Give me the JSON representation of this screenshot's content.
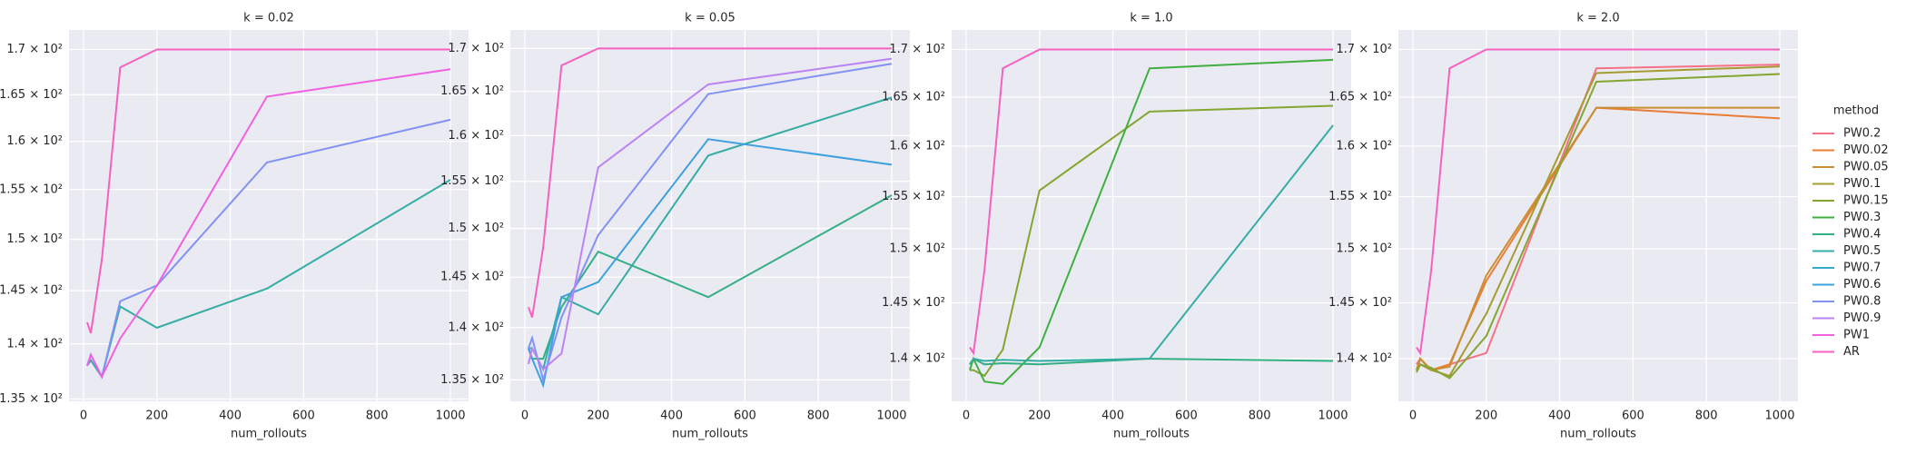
{
  "legend": {
    "title": "method",
    "entries": [
      {
        "name": "PW0.2",
        "color": "#f77189"
      },
      {
        "name": "PW0.02",
        "color": "#ea7d35"
      },
      {
        "name": "PW0.05",
        "color": "#c88e31"
      },
      {
        "name": "PW0.1",
        "color": "#a59c31"
      },
      {
        "name": "PW0.15",
        "color": "#84a631"
      },
      {
        "name": "PW0.3",
        "color": "#3fb03f"
      },
      {
        "name": "PW0.4",
        "color": "#34af84"
      },
      {
        "name": "PW0.5",
        "color": "#36ada4"
      },
      {
        "name": "PW0.7",
        "color": "#38a9c5"
      },
      {
        "name": "PW0.6",
        "color": "#3ca1e0"
      },
      {
        "name": "PW0.8",
        "color": "#8192f4"
      },
      {
        "name": "PW0.9",
        "color": "#bb83f4"
      },
      {
        "name": "PW1",
        "color": "#f160e3"
      },
      {
        "name": "AR",
        "color": "#f561c0"
      }
    ]
  },
  "chart_data": [
    {
      "type": "line",
      "title": "k = 0.02",
      "xlabel": "num_rollouts",
      "log_y": true,
      "grid": true,
      "x": [
        10,
        20,
        50,
        100,
        200,
        500,
        1000
      ],
      "xlim": [
        -39.5,
        1049.5
      ],
      "xticks": [
        0,
        200,
        400,
        600,
        800,
        1000
      ],
      "ylim": [
        134.8,
        172.2
      ],
      "yticks": [
        {
          "value": 135,
          "label": "1.35 × 10²"
        },
        {
          "value": 140,
          "label": "1.4 × 10²"
        },
        {
          "value": 145,
          "label": "1.45 × 10²"
        },
        {
          "value": 150,
          "label": "1.5 × 10²"
        },
        {
          "value": 155,
          "label": "1.55 × 10²"
        },
        {
          "value": 160,
          "label": "1.6 × 10²"
        },
        {
          "value": 165,
          "label": "1.65 × 10²"
        },
        {
          "value": 170,
          "label": "1.7 × 10²"
        }
      ],
      "series": [
        {
          "name": "PW0.5",
          "color": "#36ada4",
          "values": [
            138,
            138.5,
            137,
            143.5,
            141.5,
            145.2,
            156
          ]
        },
        {
          "name": "PW0.8",
          "color": "#8192f4",
          "values": [
            138,
            139,
            137,
            144,
            145.5,
            157.8,
            162.3
          ]
        },
        {
          "name": "PW1",
          "color": "#f160e3",
          "values": [
            138,
            139,
            137,
            140.5,
            145.5,
            164.8,
            167.8
          ]
        },
        {
          "name": "AR",
          "color": "#f561c0",
          "values": [
            142,
            141,
            148,
            168,
            170,
            170,
            170
          ]
        }
      ]
    },
    {
      "type": "line",
      "title": "k = 0.05",
      "xlabel": "num_rollouts",
      "log_y": true,
      "grid": true,
      "x": [
        10,
        20,
        50,
        100,
        200,
        500,
        1000
      ],
      "xlim": [
        -39.5,
        1049.5
      ],
      "xticks": [
        0,
        200,
        400,
        600,
        800,
        1000
      ],
      "ylim": [
        133,
        172.2
      ],
      "yticks": [
        {
          "value": 135,
          "label": "1.35 × 10²"
        },
        {
          "value": 140,
          "label": "1.4 × 10²"
        },
        {
          "value": 145,
          "label": "1.45 × 10²"
        },
        {
          "value": 150,
          "label": "1.5 × 10²"
        },
        {
          "value": 155,
          "label": "1.55 × 10²"
        },
        {
          "value": 160,
          "label": "1.6 × 10²"
        },
        {
          "value": 165,
          "label": "1.65 × 10²"
        },
        {
          "value": 170,
          "label": "1.7 × 10²"
        }
      ],
      "series": [
        {
          "name": "PW0.4",
          "color": "#34af84",
          "values": [
            138,
            137,
            137,
            142,
            147.6,
            143,
            153.5
          ]
        },
        {
          "name": "PW0.5",
          "color": "#36ada4",
          "values": [
            138,
            138,
            136,
            143,
            141.3,
            157.8,
            164.3
          ]
        },
        {
          "name": "PW0.6",
          "color": "#3ca1e0",
          "values": [
            138,
            137,
            134.5,
            143,
            144.5,
            159.6,
            156.8
          ]
        },
        {
          "name": "PW0.8",
          "color": "#8192f4",
          "values": [
            138,
            139,
            135,
            141,
            149.3,
            164.7,
            168.2
          ]
        },
        {
          "name": "PW0.9",
          "color": "#bb83f4",
          "values": [
            136.5,
            138,
            136,
            137.5,
            156.5,
            165.8,
            168.8
          ]
        },
        {
          "name": "AR",
          "color": "#f561c0",
          "values": [
            142,
            141,
            148,
            168,
            170,
            170,
            170
          ]
        }
      ]
    },
    {
      "type": "line",
      "title": "k = 1.0",
      "xlabel": "num_rollouts",
      "log_y": true,
      "grid": true,
      "x": [
        10,
        20,
        50,
        100,
        200,
        500,
        1000
      ],
      "xlim": [
        -39.5,
        1049.5
      ],
      "xticks": [
        0,
        200,
        400,
        600,
        800,
        1000
      ],
      "ylim": [
        136.3,
        172.1
      ],
      "yticks": [
        {
          "value": 140,
          "label": "1.4 × 10²"
        },
        {
          "value": 145,
          "label": "1.45 × 10²"
        },
        {
          "value": 150,
          "label": "1.5 × 10²"
        },
        {
          "value": 155,
          "label": "1.55 × 10²"
        },
        {
          "value": 160,
          "label": "1.6 × 10²"
        },
        {
          "value": 165,
          "label": "1.65 × 10²"
        },
        {
          "value": 170,
          "label": "1.7 × 10²"
        }
      ],
      "series": [
        {
          "name": "PW0.15",
          "color": "#84a631",
          "values": [
            139,
            139,
            138.5,
            140.8,
            155.6,
            163.5,
            164.1
          ]
        },
        {
          "name": "PW0.3",
          "color": "#3fb03f",
          "values": [
            139,
            140,
            138,
            137.8,
            141,
            168,
            168.9
          ]
        },
        {
          "name": "PW0.4",
          "color": "#34af84",
          "values": [
            139.5,
            140,
            139.5,
            139.6,
            139.5,
            140,
            139.8
          ]
        },
        {
          "name": "PW0.5",
          "color": "#36ada4",
          "values": [
            139.5,
            140,
            139.8,
            139.9,
            139.8,
            140,
            162.1
          ]
        },
        {
          "name": "AR",
          "color": "#f561c0",
          "values": [
            141,
            140.5,
            148,
            168,
            170,
            170,
            170
          ]
        }
      ]
    },
    {
      "type": "line",
      "title": "k = 2.0",
      "xlabel": "num_rollouts",
      "log_y": true,
      "grid": true,
      "x": [
        10,
        20,
        50,
        100,
        200,
        500,
        1000
      ],
      "xlim": [
        -39.5,
        1049.5
      ],
      "xticks": [
        0,
        200,
        400,
        600,
        800,
        1000
      ],
      "ylim": [
        136.3,
        172.1
      ],
      "yticks": [
        {
          "value": 140,
          "label": "1.4 × 10²"
        },
        {
          "value": 145,
          "label": "1.45 × 10²"
        },
        {
          "value": 150,
          "label": "1.5 × 10²"
        },
        {
          "value": 155,
          "label": "1.55 × 10²"
        },
        {
          "value": 160,
          "label": "1.6 × 10²"
        },
        {
          "value": 165,
          "label": "1.65 × 10²"
        },
        {
          "value": 170,
          "label": "1.7 × 10²"
        }
      ],
      "series": [
        {
          "name": "PW0.2",
          "color": "#f77189",
          "values": [
            139.5,
            140,
            139,
            139.5,
            140.5,
            168,
            168.4
          ]
        },
        {
          "name": "PW0.02",
          "color": "#ea7d35",
          "values": [
            139,
            140,
            139,
            139.5,
            147,
            163.9,
            162.8
          ]
        },
        {
          "name": "PW0.05",
          "color": "#c88e31",
          "values": [
            139,
            140,
            139,
            139.3,
            147.5,
            163.9,
            163.9
          ]
        },
        {
          "name": "PW0.1",
          "color": "#a59c31",
          "values": [
            139,
            139.5,
            139,
            138.5,
            144,
            167.5,
            168.2
          ]
        },
        {
          "name": "PW0.15",
          "color": "#84a631",
          "values": [
            138.8,
            139.5,
            139.2,
            138.3,
            142,
            166.6,
            167.4
          ]
        },
        {
          "name": "AR",
          "color": "#f561c0",
          "values": [
            141,
            140.5,
            148,
            168,
            170,
            170,
            170
          ]
        }
      ]
    }
  ]
}
